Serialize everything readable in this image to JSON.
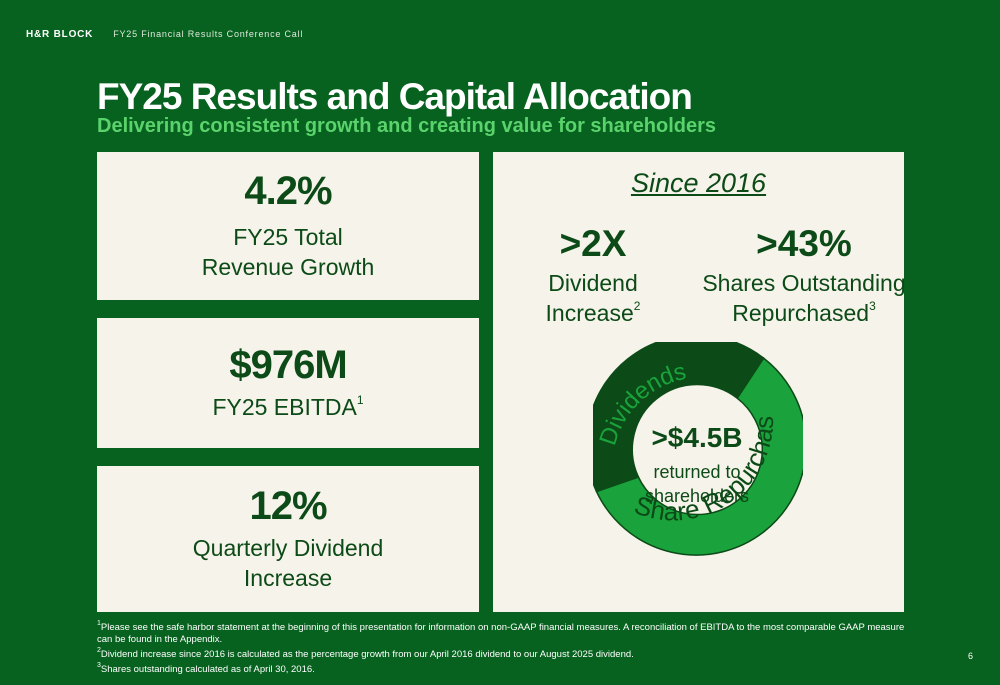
{
  "header": {
    "brand": "H&R BLOCK",
    "event": "FY25 Financial Results Conference Call"
  },
  "title": "FY25 Results and Capital Allocation",
  "subtitle": "Delivering consistent growth and creating value for shareholders",
  "cards": [
    {
      "value": "4.2%",
      "line1": "FY25 Total",
      "line2": "Revenue Growth"
    },
    {
      "value": "$976M",
      "line1": "FY25 EBITDA",
      "sup": "1"
    },
    {
      "value": "12%",
      "line1": "Quarterly Dividend",
      "line2": "Increase"
    }
  ],
  "since": {
    "heading": "Since 2016",
    "dividend": {
      "value": ">2X",
      "line1": "Dividend",
      "line2": "Increase",
      "sup": "2"
    },
    "shares": {
      "value": ">43%",
      "line1": "Shares Outstanding",
      "line2": "Repurchased",
      "sup": "3"
    },
    "donut": {
      "center_value": ">$4.5B",
      "center_line1": "returned to",
      "center_line2": "shareholders",
      "segments": [
        {
          "label": "Dividends",
          "color": "#0c4a17"
        },
        {
          "label": "Share Repurchases",
          "color": "#1aa33c"
        }
      ]
    }
  },
  "footnotes": [
    {
      "num": "1",
      "text": "Please see the safe harbor statement at the beginning of this presentation for information on non-GAAP financial measures. A reconciliation of EBITDA to the most comparable GAAP measure can be found in the Appendix."
    },
    {
      "num": "2",
      "text": "Dividend increase since 2016 is calculated as the percentage growth from our April 2016 dividend to our August 2025 dividend."
    },
    {
      "num": "3",
      "text": "Shares outstanding calculated as of April 30, 2016."
    }
  ],
  "page_number": "6"
}
